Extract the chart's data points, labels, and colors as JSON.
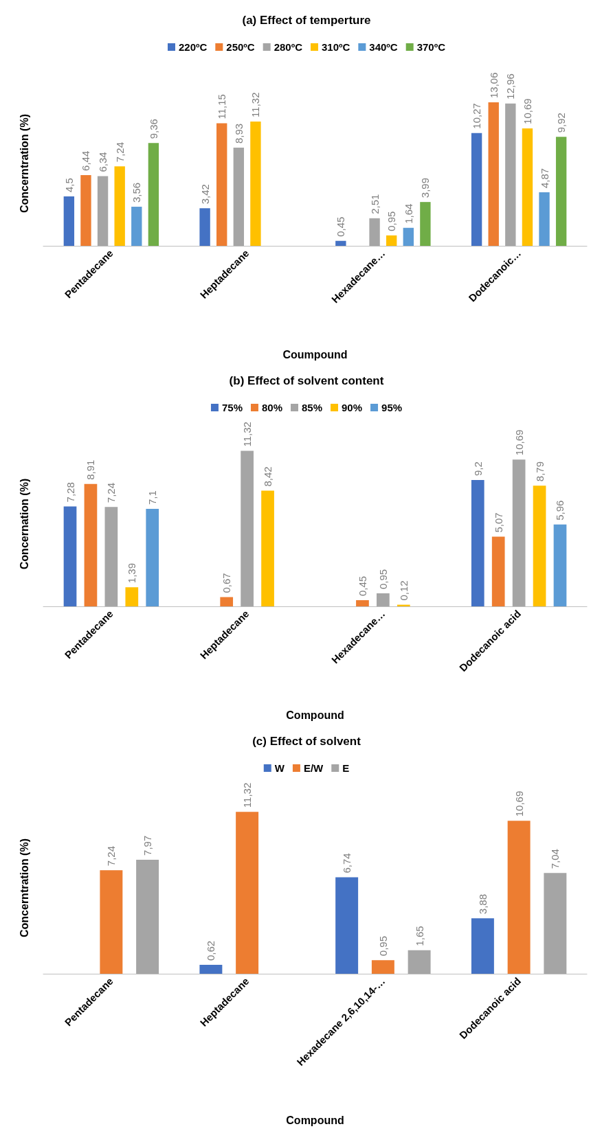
{
  "chart_data": [
    {
      "type": "bar",
      "title": "(a) Effect of temperture",
      "xlabel": "Coumpound",
      "ylabel": "Concerntration (%)",
      "categories": [
        "Pentadecane",
        "Heptadecane",
        "Hexadecane…",
        "Dodecanoic…"
      ],
      "legend": "top",
      "series": [
        {
          "name": "220ºC",
          "color": "#4472c4",
          "values": [
            4.5,
            3.42,
            0.45,
            10.27
          ],
          "value_labels": [
            "4,5",
            "3,42",
            "0,45",
            "10,27"
          ]
        },
        {
          "name": "250ºC",
          "color": "#ed7d31",
          "values": [
            6.44,
            11.15,
            null,
            13.06
          ],
          "value_labels": [
            "6,44",
            "11,15",
            null,
            "13,06"
          ]
        },
        {
          "name": "280ºC",
          "color": "#a5a5a5",
          "values": [
            6.34,
            8.93,
            2.51,
            12.96
          ],
          "value_labels": [
            "6,34",
            "8,93",
            "2,51",
            "12,96"
          ]
        },
        {
          "name": "310ºC",
          "color": "#ffc000",
          "values": [
            7.24,
            11.32,
            0.95,
            10.69
          ],
          "value_labels": [
            "7,24",
            "11,32",
            "0,95",
            "10,69"
          ]
        },
        {
          "name": "340ºC",
          "color": "#5b9bd5",
          "values": [
            3.56,
            null,
            1.64,
            4.87
          ],
          "value_labels": [
            "3,56",
            null,
            "1,64",
            "4,87"
          ]
        },
        {
          "name": "370ºC",
          "color": "#70ad47",
          "values": [
            9.36,
            null,
            3.99,
            9.92
          ],
          "value_labels": [
            "9,36",
            null,
            "3,99",
            "9,92"
          ]
        }
      ]
    },
    {
      "type": "bar",
      "title": "(b) Effect of solvent content",
      "xlabel": "Compound",
      "ylabel": "Concernation (%)",
      "categories": [
        "Pentadecane",
        "Heptadecane",
        "Hexadecane…",
        "Dodecanoic acid"
      ],
      "legend": "top",
      "series": [
        {
          "name": "75%",
          "color": "#4472c4",
          "values": [
            7.28,
            null,
            null,
            9.2
          ],
          "value_labels": [
            "7,28",
            null,
            null,
            "9,2"
          ]
        },
        {
          "name": "80%",
          "color": "#ed7d31",
          "values": [
            8.91,
            0.67,
            0.45,
            5.07
          ],
          "value_labels": [
            "8,91",
            "0,67",
            "0,45",
            "5,07"
          ]
        },
        {
          "name": "85%",
          "color": "#a5a5a5",
          "values": [
            7.24,
            11.32,
            0.95,
            10.69
          ],
          "value_labels": [
            "7,24",
            "11,32",
            "0,95",
            "10,69"
          ]
        },
        {
          "name": "90%",
          "color": "#ffc000",
          "values": [
            1.39,
            8.42,
            0.12,
            8.79
          ],
          "value_labels": [
            "1,39",
            "8,42",
            "0,12",
            "8,79"
          ]
        },
        {
          "name": "95%",
          "color": "#5b9bd5",
          "values": [
            7.1,
            null,
            null,
            5.96
          ],
          "value_labels": [
            "7,1",
            null,
            null,
            "5,96"
          ]
        }
      ]
    },
    {
      "type": "bar",
      "title": "(c) Effect of solvent",
      "xlabel": "Compound",
      "ylabel": "Concerntration (%)",
      "categories": [
        "Pentadecane",
        "Heptadecane",
        "Hexadecane 2,6,10,14-…",
        "Dodecanoic acid"
      ],
      "legend": "top",
      "series": [
        {
          "name": "W",
          "color": "#4472c4",
          "values": [
            null,
            0.62,
            6.74,
            3.88
          ],
          "value_labels": [
            null,
            "0,62",
            "6,74",
            "3,88"
          ]
        },
        {
          "name": "E/W",
          "color": "#ed7d31",
          "values": [
            7.24,
            11.32,
            0.95,
            10.69
          ],
          "value_labels": [
            "7,24",
            "11,32",
            "0,95",
            "10,69"
          ]
        },
        {
          "name": "E",
          "color": "#a5a5a5",
          "values": [
            7.97,
            null,
            1.65,
            7.04
          ],
          "value_labels": [
            "7,97",
            null,
            "1,65",
            "7,04"
          ]
        }
      ]
    }
  ]
}
